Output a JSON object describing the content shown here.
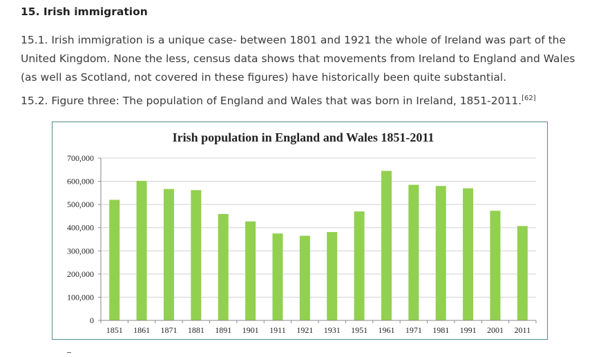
{
  "section": {
    "heading": "15. Irish immigration",
    "para1": "15.1. Irish immigration is a unique case- between 1801 and 1921 the whole of Ireland was part of the United Kingdom. None the less, census data shows that movements from Ireland to England and Wales (as well as Scotland, not covered in these figures) have historically been quite substantial.",
    "para2": "15.2. Figure three: The population of England and Wales that was born in Ireland, 1851-2011.",
    "para2_citation": "[62]"
  },
  "colors": {
    "bar": "#92d050",
    "grid": "#d0d0d0",
    "frame": "#4f8a8b"
  },
  "chart_data": {
    "type": "bar",
    "title": "Irish population in England and Wales 1851-2011",
    "xlabel": "",
    "ylabel": "",
    "categories": [
      "1851",
      "1861",
      "1871",
      "1881",
      "1891",
      "1901",
      "1911",
      "1921",
      "1931",
      "1951",
      "1961",
      "1971",
      "1981",
      "1991",
      "2001",
      "2011"
    ],
    "values": [
      520000,
      602000,
      567000,
      562000,
      459000,
      427000,
      375000,
      365000,
      381000,
      470000,
      645000,
      585000,
      580000,
      570000,
      473000,
      407000
    ],
    "ylim": [
      0,
      700000
    ],
    "yticks": [
      0,
      100000,
      200000,
      300000,
      400000,
      500000,
      600000,
      700000
    ],
    "ytick_labels": [
      "0",
      "100,000",
      "200,000",
      "300,000",
      "400,000",
      "500,000",
      "600,000",
      "700,000"
    ],
    "grid": true,
    "legend": "none"
  }
}
